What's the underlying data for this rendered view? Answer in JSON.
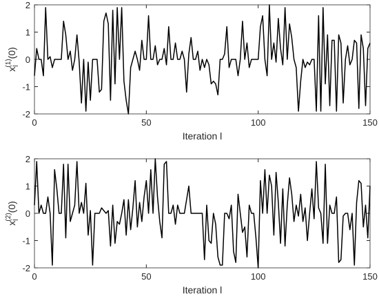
{
  "chart_data": [
    {
      "type": "line",
      "xlabel": "Iteration l",
      "ylabel": "x",
      "ylabel_sub": "l",
      "ylabel_sup": "(1)",
      "ylabel_tail": "(0)",
      "xlim": [
        0,
        150
      ],
      "xticks": [
        0,
        50,
        100,
        150
      ],
      "ylim": [
        -2,
        2
      ],
      "yticks": [
        -2,
        -1,
        0,
        1,
        2
      ],
      "x": [
        0,
        1,
        2,
        3,
        4,
        5,
        6,
        7,
        8,
        9,
        10,
        11,
        12,
        13,
        14,
        15,
        16,
        17,
        18,
        19,
        20,
        21,
        22,
        23,
        24,
        25,
        26,
        27,
        28,
        29,
        30,
        31,
        32,
        33,
        34,
        35,
        36,
        37,
        38,
        39,
        40,
        41,
        42,
        43,
        44,
        45,
        46,
        47,
        48,
        49,
        50,
        51,
        52,
        53,
        54,
        55,
        56,
        57,
        58,
        59,
        60,
        61,
        62,
        63,
        64,
        65,
        66,
        67,
        68,
        69,
        70,
        71,
        72,
        73,
        74,
        75,
        76,
        77,
        78,
        79,
        80,
        81,
        82,
        83,
        84,
        85,
        86,
        87,
        88,
        89,
        90,
        91,
        92,
        93,
        94,
        95,
        96,
        97,
        98,
        99,
        100,
        101,
        102,
        103,
        104,
        105,
        106,
        107,
        108,
        109,
        110,
        111,
        112,
        113,
        114,
        115,
        116,
        117,
        118,
        119,
        120,
        121,
        122,
        123,
        124,
        125,
        126,
        127,
        128,
        129,
        130,
        131,
        132,
        133,
        134,
        135,
        136,
        137,
        138,
        139,
        140,
        141,
        142,
        143,
        144,
        145,
        146,
        147,
        148,
        149,
        150
      ],
      "series": [
        {
          "color": "#000000",
          "values": [
            -0.6,
            0.4,
            0,
            0,
            -0.6,
            1.9,
            0,
            0.1,
            -0.3,
            0,
            0,
            0,
            0,
            1.4,
            0.9,
            0,
            0.3,
            -0.4,
            0,
            0.9,
            -0.1,
            -1.6,
            0,
            -1.9,
            -0.1,
            -1.5,
            0,
            0,
            0,
            -1.2,
            -1.1,
            1.4,
            1.7,
            1.3,
            -1.5,
            1.8,
            -0.9,
            1.9,
            0,
            1.9,
            -0.8,
            -1.5,
            -2.0,
            -0.3,
            0,
            0.3,
            0,
            -0.4,
            0.7,
            0,
            0,
            1.6,
            0,
            0,
            0.5,
            -0.2,
            0,
            0,
            0.4,
            -0.2,
            1.2,
            0,
            0,
            0.6,
            0,
            0,
            0.3,
            0,
            -1.2,
            0.2,
            0.8,
            0,
            0,
            0.3,
            -0.4,
            0,
            -0.3,
            0,
            -0.2,
            -0.9,
            -0.8,
            -0.9,
            -1.3,
            0,
            0,
            0.2,
            1.2,
            -0.3,
            0,
            0,
            0,
            -0.6,
            0,
            1.4,
            0,
            0.6,
            -0.3,
            0,
            0,
            0,
            0,
            1.2,
            1.6,
            0,
            -0.6,
            2.0,
            0,
            0.6,
            -0.1,
            1.5,
            0.4,
            -0.2,
            1.9,
            0,
            1.3,
            0.8,
            0,
            -0.3,
            -1.9,
            -0.8,
            0,
            -0.3,
            -0.1,
            -0.2,
            0,
            0,
            -1.9,
            1.6,
            -1.9,
            1.9,
            -0.9,
            0.9,
            -1.7,
            0.7,
            0.7,
            -1.9,
            0.9,
            0.6,
            -1.6,
            0,
            0.5,
            -0.2,
            0,
            0.7,
            0.6,
            -1.8,
            0.9,
            0.4,
            -1.7,
            0.4,
            0.6
          ]
        }
      ]
    },
    {
      "type": "line",
      "xlabel": "Iteration l",
      "ylabel": "x",
      "ylabel_sub": "l",
      "ylabel_sup": "(2)",
      "ylabel_tail": "(0)",
      "xlim": [
        0,
        150
      ],
      "xticks": [
        0,
        50,
        100,
        150
      ],
      "ylim": [
        -2,
        2
      ],
      "yticks": [
        -2,
        -1,
        0,
        1,
        2
      ],
      "x": [
        0,
        1,
        2,
        3,
        4,
        5,
        6,
        7,
        8,
        9,
        10,
        11,
        12,
        13,
        14,
        15,
        16,
        17,
        18,
        19,
        20,
        21,
        22,
        23,
        24,
        25,
        26,
        27,
        28,
        29,
        30,
        31,
        32,
        33,
        34,
        35,
        36,
        37,
        38,
        39,
        40,
        41,
        42,
        43,
        44,
        45,
        46,
        47,
        48,
        49,
        50,
        51,
        52,
        53,
        54,
        55,
        56,
        57,
        58,
        59,
        60,
        61,
        62,
        63,
        64,
        65,
        66,
        67,
        68,
        69,
        70,
        71,
        72,
        73,
        74,
        75,
        76,
        77,
        78,
        79,
        80,
        81,
        82,
        83,
        84,
        85,
        86,
        87,
        88,
        89,
        90,
        91,
        92,
        93,
        94,
        95,
        96,
        97,
        98,
        99,
        100,
        101,
        102,
        103,
        104,
        105,
        106,
        107,
        108,
        109,
        110,
        111,
        112,
        113,
        114,
        115,
        116,
        117,
        118,
        119,
        120,
        121,
        122,
        123,
        124,
        125,
        126,
        127,
        128,
        129,
        130,
        131,
        132,
        133,
        134,
        135,
        136,
        137,
        138,
        139,
        140,
        141,
        142,
        143,
        144,
        145,
        146,
        147,
        148,
        149,
        150
      ],
      "series": [
        {
          "color": "#000000",
          "values": [
            0.3,
            1.9,
            0,
            0.3,
            0,
            0,
            0.6,
            0,
            -1.9,
            1.6,
            0.9,
            0,
            0,
            1.8,
            -0.9,
            1.8,
            -0.3,
            0,
            0.3,
            1.9,
            0,
            0.4,
            0,
            1.1,
            -0.8,
            0.1,
            -1.9,
            0,
            0,
            0,
            0.2,
            0.1,
            0,
            0.1,
            -1.2,
            0.3,
            -1.1,
            -0.3,
            -0.4,
            0,
            0.5,
            -0.8,
            0.5,
            -0.6,
            0.2,
            1.2,
            -0.5,
            0.4,
            -0.3,
            0.6,
            1.2,
            0,
            1.6,
            0,
            2.0,
            0.6,
            -0.3,
            -0.9,
            1.8,
            1.9,
            0,
            0,
            0.3,
            -0.4,
            0.3,
            0,
            0,
            0,
            0.5,
            1.0,
            0,
            0,
            0,
            0,
            0,
            0,
            -1.7,
            0.3,
            -1.0,
            -1.1,
            0,
            -0.4,
            -1.6,
            -1.9,
            -1.9,
            0,
            0,
            -0.2,
            0.3,
            -1.4,
            -1.8,
            0.7,
            0,
            -0.7,
            -0.5,
            -1.6,
            0.3,
            0,
            0,
            -0.9,
            -2.0,
            1.2,
            0,
            1.6,
            0,
            1.4,
            1.0,
            -0.8,
            1.5,
            0.4,
            -1.1,
            0.9,
            -1.2,
            0.3,
            1.3,
            0.7,
            -0.3,
            0.3,
            -0.1,
            0.7,
            -0.3,
            0.2,
            -1.0,
            0,
            0.9,
            -0.2,
            1.9,
            0.2,
            0,
            -1.1,
            1.8,
            -1.1,
            0.3,
            0,
            0,
            0.6,
            -1.8,
            -1.7,
            -0.1,
            0,
            0,
            -0.6,
            0,
            -1.9,
            0.4,
            1.2,
            1.1,
            -0.5,
            0.3,
            -0.9,
            1.0
          ]
        }
      ]
    }
  ]
}
